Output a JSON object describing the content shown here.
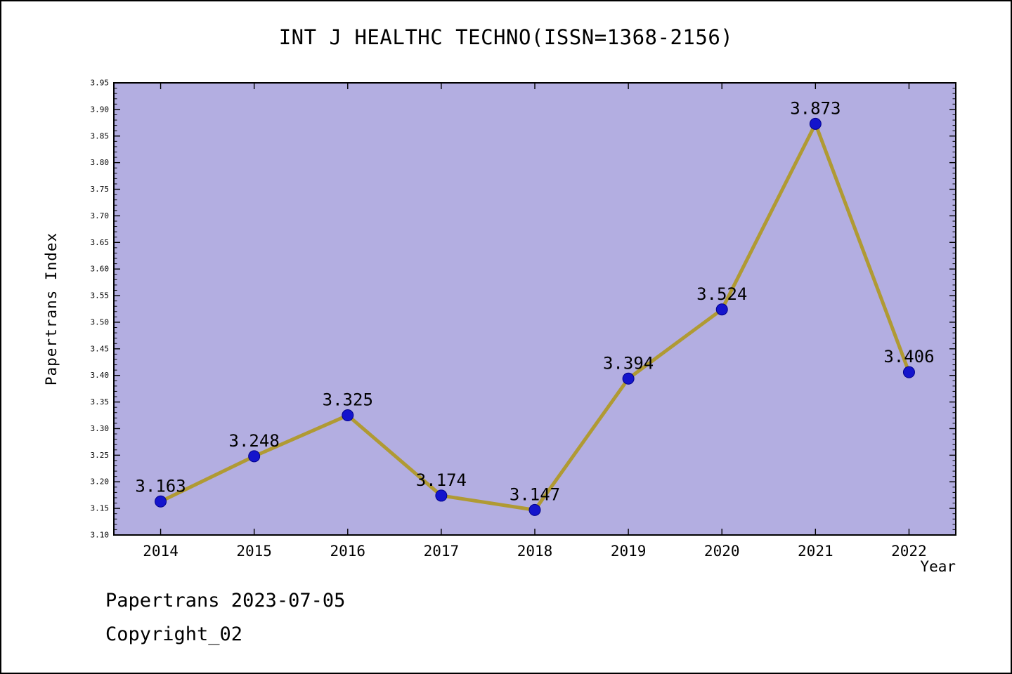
{
  "chart_data": {
    "type": "line",
    "title": "INT J HEALTHC TECHNO(ISSN=1368-2156)",
    "categories": [
      "2014",
      "2015",
      "2016",
      "2017",
      "2018",
      "2019",
      "2020",
      "2021",
      "2022"
    ],
    "values": [
      3.163,
      3.248,
      3.325,
      3.174,
      3.147,
      3.394,
      3.524,
      3.873,
      3.406
    ],
    "point_labels": [
      "3.163",
      "3.248",
      "3.325",
      "3.174",
      "3.147",
      "3.394",
      "3.524",
      "3.873",
      "3.406"
    ],
    "xlabel": "Year",
    "ylabel": "Papertrans Index",
    "ylim": [
      3.1,
      3.95
    ],
    "ytick_step": 0.05,
    "ytick_minor_step": 0.01,
    "grid": false,
    "legend": "none",
    "colors": {
      "plot_background": "#b3aee1",
      "line": "#b09a33",
      "marker": "#1414cc",
      "marker_edge": "#00008b",
      "axis": "#000000",
      "text": "#000000",
      "page_background": "#ffffff"
    }
  },
  "footer": {
    "line1": "Papertrans 2023-07-05",
    "line2": "Copyright_02"
  }
}
